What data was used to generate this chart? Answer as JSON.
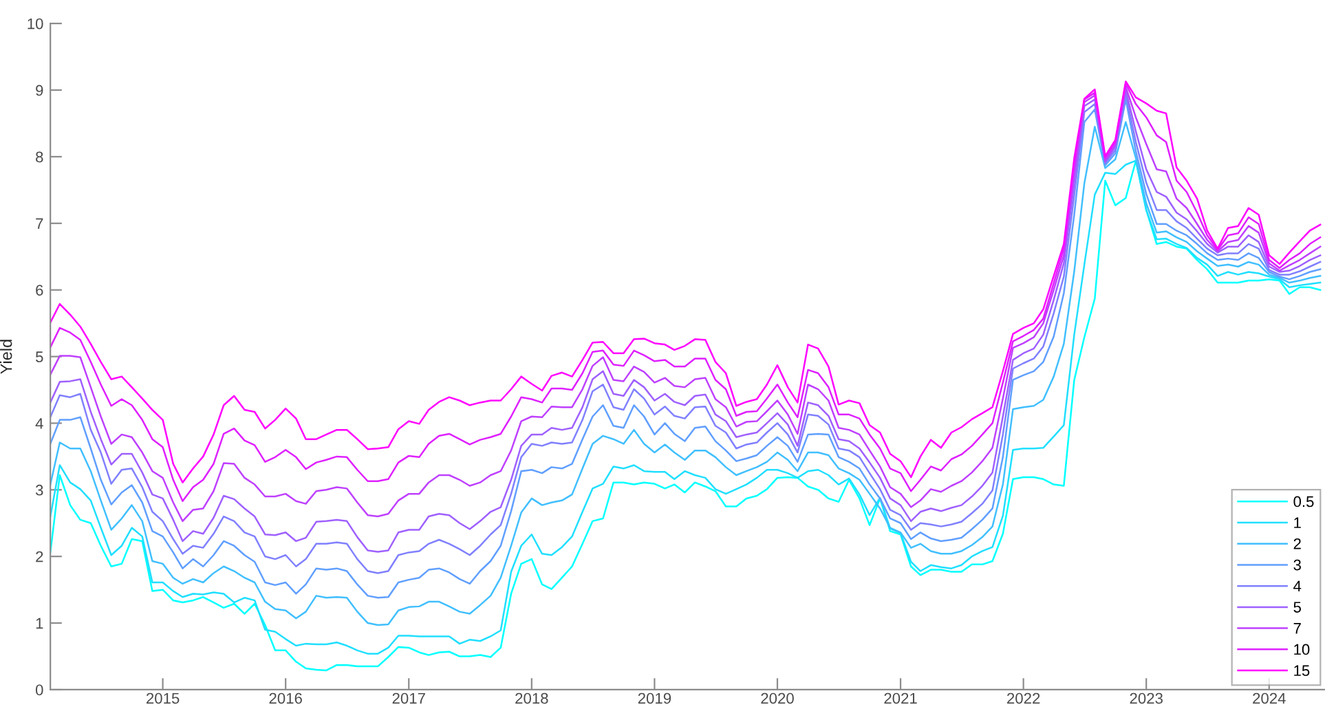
{
  "chart_data": {
    "type": "line",
    "ylabel": "Yield",
    "x": [
      "2014-02",
      "2014-03",
      "2014-04",
      "2014-05",
      "2014-06",
      "2014-07",
      "2014-08",
      "2014-09",
      "2014-10",
      "2014-11",
      "2014-12",
      "2015-01",
      "2015-02",
      "2015-03",
      "2015-04",
      "2015-05",
      "2015-06",
      "2015-07",
      "2015-08",
      "2015-09",
      "2015-10",
      "2015-11",
      "2015-12",
      "2016-01",
      "2016-02",
      "2016-03",
      "2016-04",
      "2016-05",
      "2016-06",
      "2016-07",
      "2016-08",
      "2016-09",
      "2016-10",
      "2016-11",
      "2016-12",
      "2017-01",
      "2017-02",
      "2017-03",
      "2017-04",
      "2017-05",
      "2017-06",
      "2017-07",
      "2017-08",
      "2017-09",
      "2017-10",
      "2017-11",
      "2017-12",
      "2018-01",
      "2018-02",
      "2018-03",
      "2018-04",
      "2018-05",
      "2018-06",
      "2018-07",
      "2018-08",
      "2018-09",
      "2018-10",
      "2018-11",
      "2018-12",
      "2019-01",
      "2019-02",
      "2019-03",
      "2019-04",
      "2019-05",
      "2019-06",
      "2019-07",
      "2019-08",
      "2019-09",
      "2019-10",
      "2019-11",
      "2019-12",
      "2020-01",
      "2020-02",
      "2020-03",
      "2020-04",
      "2020-05",
      "2020-06",
      "2020-07",
      "2020-08",
      "2020-09",
      "2020-10",
      "2020-11",
      "2020-12",
      "2021-01",
      "2021-02",
      "2021-03",
      "2021-04",
      "2021-05",
      "2021-06",
      "2021-07",
      "2021-08",
      "2021-09",
      "2021-10",
      "2021-11",
      "2021-12",
      "2022-01",
      "2022-02",
      "2022-03",
      "2022-04",
      "2022-05",
      "2022-06",
      "2022-07",
      "2022-08",
      "2022-09",
      "2022-10",
      "2022-11",
      "2022-12",
      "2023-01",
      "2023-02",
      "2023-03",
      "2023-04",
      "2023-05",
      "2023-06",
      "2023-07",
      "2023-08",
      "2023-09",
      "2023-10",
      "2023-11",
      "2023-12",
      "2024-01",
      "2024-02",
      "2024-03",
      "2024-04",
      "2024-05",
      "2024-06"
    ],
    "series": [
      {
        "name": "0.5",
        "color": "#00ffff",
        "values": [
          2.06,
          3.22,
          2.77,
          2.55,
          2.5,
          2.16,
          1.85,
          1.89,
          2.26,
          2.23,
          1.48,
          1.5,
          1.34,
          1.31,
          1.34,
          1.39,
          1.31,
          1.23,
          1.29,
          1.14,
          1.29,
          0.97,
          0.59,
          0.59,
          0.42,
          0.32,
          0.3,
          0.29,
          0.37,
          0.37,
          0.35,
          0.35,
          0.35,
          0.49,
          0.64,
          0.63,
          0.56,
          0.52,
          0.56,
          0.57,
          0.5,
          0.5,
          0.52,
          0.49,
          0.63,
          1.44,
          1.89,
          1.96,
          1.58,
          1.51,
          1.68,
          1.85,
          2.19,
          2.53,
          2.57,
          3.11,
          3.11,
          3.08,
          3.11,
          3.09,
          3.02,
          3.08,
          2.96,
          3.11,
          3.05,
          2.98,
          2.75,
          2.75,
          2.87,
          2.91,
          3.01,
          3.18,
          3.19,
          3.18,
          3.05,
          3.0,
          2.87,
          2.82,
          3.15,
          2.87,
          2.47,
          2.87,
          2.38,
          2.33,
          1.85,
          1.72,
          1.8,
          1.8,
          1.77,
          1.77,
          1.88,
          1.88,
          1.93,
          2.34,
          3.16,
          3.19,
          3.19,
          3.16,
          3.08,
          3.06,
          4.65,
          5.29,
          5.87,
          7.64,
          7.27,
          7.38,
          7.94,
          7.2,
          6.69,
          6.72,
          6.65,
          6.62,
          6.45,
          6.31,
          6.11,
          6.11,
          6.11,
          6.14,
          6.14,
          6.16,
          6.14,
          5.94,
          6.04,
          6.04,
          6.0
        ]
      },
      {
        "name": "1",
        "color": "#20dfff",
        "values": [
          2.6,
          3.37,
          3.11,
          3.01,
          2.84,
          2.43,
          2.02,
          2.16,
          2.43,
          2.3,
          1.61,
          1.61,
          1.48,
          1.39,
          1.44,
          1.43,
          1.46,
          1.44,
          1.31,
          1.38,
          1.34,
          0.9,
          0.87,
          0.76,
          0.66,
          0.69,
          0.68,
          0.68,
          0.71,
          0.66,
          0.59,
          0.54,
          0.54,
          0.63,
          0.81,
          0.81,
          0.8,
          0.8,
          0.8,
          0.8,
          0.69,
          0.75,
          0.73,
          0.8,
          0.89,
          1.77,
          2.16,
          2.33,
          2.04,
          2.02,
          2.14,
          2.3,
          2.67,
          3.02,
          3.09,
          3.35,
          3.32,
          3.37,
          3.28,
          3.27,
          3.27,
          3.16,
          3.28,
          3.22,
          3.18,
          3.01,
          2.94,
          3.01,
          3.08,
          3.18,
          3.3,
          3.3,
          3.25,
          3.18,
          3.28,
          3.3,
          3.22,
          3.08,
          3.17,
          2.93,
          2.62,
          2.88,
          2.42,
          2.35,
          1.92,
          1.78,
          1.87,
          1.84,
          1.82,
          1.87,
          2.0,
          2.08,
          2.14,
          2.61,
          3.6,
          3.62,
          3.62,
          3.63,
          3.8,
          3.97,
          5.33,
          6.38,
          7.43,
          7.76,
          7.74,
          7.88,
          7.94,
          7.2,
          6.76,
          6.77,
          6.69,
          6.63,
          6.48,
          6.38,
          6.21,
          6.27,
          6.23,
          6.27,
          6.25,
          6.2,
          6.16,
          6.04,
          6.07,
          6.09,
          6.11
        ]
      },
      {
        "name": "2",
        "color": "#40bfff",
        "values": [
          3.08,
          3.71,
          3.62,
          3.62,
          3.28,
          2.84,
          2.4,
          2.57,
          2.77,
          2.53,
          1.93,
          1.89,
          1.68,
          1.59,
          1.66,
          1.61,
          1.75,
          1.85,
          1.78,
          1.68,
          1.61,
          1.32,
          1.21,
          1.19,
          1.07,
          1.17,
          1.41,
          1.38,
          1.39,
          1.38,
          1.17,
          1.0,
          0.97,
          0.98,
          1.19,
          1.24,
          1.25,
          1.32,
          1.32,
          1.25,
          1.17,
          1.14,
          1.27,
          1.41,
          1.68,
          2.16,
          2.66,
          2.87,
          2.77,
          2.81,
          2.84,
          2.93,
          3.32,
          3.69,
          3.81,
          3.76,
          3.69,
          3.9,
          3.69,
          3.56,
          3.68,
          3.56,
          3.45,
          3.59,
          3.59,
          3.49,
          3.34,
          3.22,
          3.28,
          3.34,
          3.42,
          3.56,
          3.45,
          3.28,
          3.56,
          3.56,
          3.52,
          3.32,
          3.25,
          3.15,
          2.94,
          2.72,
          2.43,
          2.36,
          2.13,
          2.19,
          2.08,
          2.04,
          2.04,
          2.08,
          2.17,
          2.29,
          2.45,
          3.08,
          4.21,
          4.24,
          4.26,
          4.35,
          4.7,
          5.19,
          6.28,
          7.6,
          8.45,
          7.83,
          7.96,
          8.52,
          7.98,
          7.3,
          6.86,
          6.88,
          6.79,
          6.72,
          6.58,
          6.47,
          6.36,
          6.38,
          6.35,
          6.42,
          6.38,
          6.23,
          6.18,
          6.11,
          6.14,
          6.18,
          6.21
        ]
      },
      {
        "name": "3",
        "color": "#609fff",
        "values": [
          3.69,
          4.05,
          4.05,
          4.09,
          3.62,
          3.15,
          2.78,
          2.96,
          3.07,
          2.81,
          2.38,
          2.3,
          2.06,
          1.82,
          1.96,
          1.85,
          2.02,
          2.23,
          2.16,
          2.02,
          1.92,
          1.61,
          1.57,
          1.61,
          1.44,
          1.58,
          1.82,
          1.8,
          1.82,
          1.78,
          1.58,
          1.41,
          1.38,
          1.39,
          1.61,
          1.65,
          1.68,
          1.8,
          1.82,
          1.76,
          1.66,
          1.59,
          1.78,
          1.93,
          2.16,
          2.68,
          3.28,
          3.3,
          3.25,
          3.34,
          3.32,
          3.39,
          3.76,
          4.1,
          4.27,
          3.96,
          3.93,
          4.27,
          4.1,
          3.83,
          4.0,
          3.84,
          3.73,
          3.93,
          3.95,
          3.73,
          3.59,
          3.43,
          3.47,
          3.52,
          3.66,
          3.79,
          3.66,
          3.42,
          3.83,
          3.84,
          3.83,
          3.49,
          3.42,
          3.32,
          3.08,
          2.87,
          2.57,
          2.5,
          2.26,
          2.36,
          2.27,
          2.23,
          2.25,
          2.28,
          2.41,
          2.55,
          2.72,
          3.49,
          4.65,
          4.72,
          4.78,
          4.92,
          5.3,
          5.95,
          7.13,
          8.52,
          8.71,
          7.87,
          8.05,
          8.86,
          8.08,
          7.44,
          6.99,
          6.99,
          6.89,
          6.82,
          6.69,
          6.55,
          6.45,
          6.47,
          6.45,
          6.55,
          6.48,
          6.27,
          6.2,
          6.16,
          6.21,
          6.27,
          6.31
        ]
      },
      {
        "name": "4",
        "color": "#8080ff",
        "values": [
          4.09,
          4.42,
          4.39,
          4.44,
          3.9,
          3.56,
          3.09,
          3.3,
          3.32,
          3.04,
          2.67,
          2.53,
          2.26,
          2.04,
          2.16,
          2.13,
          2.34,
          2.6,
          2.53,
          2.36,
          2.3,
          2.0,
          1.96,
          2.02,
          1.85,
          1.96,
          2.19,
          2.19,
          2.21,
          2.19,
          1.96,
          1.78,
          1.75,
          1.78,
          2.02,
          2.06,
          2.08,
          2.19,
          2.25,
          2.19,
          2.11,
          2.02,
          2.16,
          2.33,
          2.47,
          2.94,
          3.49,
          3.69,
          3.66,
          3.71,
          3.69,
          3.71,
          4.05,
          4.48,
          4.58,
          4.24,
          4.2,
          4.51,
          4.37,
          4.13,
          4.25,
          4.11,
          4.07,
          4.24,
          4.25,
          3.96,
          3.86,
          3.62,
          3.68,
          3.71,
          3.86,
          4.0,
          3.83,
          3.56,
          4.13,
          4.11,
          3.98,
          3.62,
          3.59,
          3.49,
          3.25,
          3.01,
          2.7,
          2.62,
          2.4,
          2.5,
          2.48,
          2.45,
          2.48,
          2.52,
          2.65,
          2.79,
          2.99,
          3.83,
          4.82,
          4.9,
          4.97,
          5.15,
          5.65,
          6.2,
          7.42,
          8.67,
          8.79,
          7.9,
          8.1,
          8.94,
          8.22,
          7.61,
          7.2,
          7.2,
          7.03,
          6.93,
          6.77,
          6.62,
          6.52,
          6.55,
          6.55,
          6.69,
          6.62,
          6.3,
          6.23,
          6.23,
          6.28,
          6.35,
          6.42
        ]
      },
      {
        "name": "5",
        "color": "#9f60ff",
        "values": [
          4.31,
          4.62,
          4.63,
          4.66,
          4.17,
          3.76,
          3.38,
          3.54,
          3.54,
          3.26,
          2.93,
          2.87,
          2.55,
          2.23,
          2.38,
          2.34,
          2.58,
          2.91,
          2.86,
          2.72,
          2.6,
          2.33,
          2.32,
          2.36,
          2.23,
          2.28,
          2.52,
          2.53,
          2.55,
          2.53,
          2.29,
          2.09,
          2.07,
          2.09,
          2.36,
          2.4,
          2.4,
          2.6,
          2.64,
          2.62,
          2.5,
          2.41,
          2.53,
          2.67,
          2.74,
          3.15,
          3.66,
          3.83,
          3.83,
          3.93,
          3.9,
          3.93,
          4.24,
          4.66,
          4.78,
          4.44,
          4.41,
          4.65,
          4.54,
          4.34,
          4.44,
          4.32,
          4.27,
          4.41,
          4.43,
          4.13,
          4.03,
          3.79,
          3.83,
          3.86,
          4.0,
          4.15,
          3.98,
          3.66,
          4.31,
          4.27,
          4.11,
          3.76,
          3.73,
          3.62,
          3.41,
          3.18,
          2.87,
          2.77,
          2.53,
          2.67,
          2.72,
          2.68,
          2.73,
          2.77,
          2.9,
          3.06,
          3.26,
          4.1,
          4.95,
          5.05,
          5.12,
          5.33,
          5.85,
          6.4,
          7.6,
          8.76,
          8.86,
          7.92,
          8.15,
          9.0,
          8.38,
          7.81,
          7.47,
          7.4,
          7.16,
          7.06,
          6.88,
          6.69,
          6.56,
          6.65,
          6.65,
          6.82,
          6.72,
          6.35,
          6.27,
          6.29,
          6.36,
          6.45,
          6.52
        ]
      },
      {
        "name": "7",
        "color": "#bf40ff",
        "values": [
          4.73,
          5.01,
          5.01,
          4.99,
          4.54,
          4.1,
          3.69,
          3.83,
          3.79,
          3.56,
          3.28,
          3.18,
          2.81,
          2.53,
          2.7,
          2.72,
          2.98,
          3.4,
          3.39,
          3.18,
          3.08,
          2.9,
          2.9,
          2.94,
          2.83,
          2.79,
          2.98,
          3.0,
          3.04,
          3.02,
          2.81,
          2.62,
          2.6,
          2.64,
          2.84,
          2.94,
          2.94,
          3.11,
          3.22,
          3.22,
          3.15,
          3.06,
          3.11,
          3.22,
          3.28,
          3.59,
          4.03,
          4.1,
          4.09,
          4.25,
          4.24,
          4.24,
          4.51,
          4.86,
          4.99,
          4.65,
          4.63,
          4.85,
          4.77,
          4.61,
          4.68,
          4.56,
          4.54,
          4.66,
          4.68,
          4.36,
          4.24,
          3.95,
          4.02,
          4.03,
          4.18,
          4.34,
          4.13,
          3.84,
          4.58,
          4.51,
          4.34,
          3.93,
          3.9,
          3.83,
          3.59,
          3.35,
          3.04,
          2.94,
          2.74,
          2.84,
          3.01,
          2.97,
          3.06,
          3.13,
          3.26,
          3.43,
          3.63,
          4.37,
          5.13,
          5.2,
          5.29,
          5.5,
          6.0,
          6.52,
          7.76,
          8.82,
          8.92,
          7.94,
          8.18,
          9.05,
          8.59,
          8.19,
          7.81,
          7.78,
          7.37,
          7.23,
          6.99,
          6.75,
          6.58,
          6.72,
          6.75,
          6.96,
          6.86,
          6.4,
          6.29,
          6.37,
          6.45,
          6.55,
          6.65
        ]
      },
      {
        "name": "10",
        "color": "#df20ff",
        "values": [
          5.14,
          5.43,
          5.36,
          5.25,
          4.92,
          4.58,
          4.26,
          4.36,
          4.27,
          4.05,
          3.76,
          3.64,
          3.15,
          2.83,
          3.04,
          3.15,
          3.39,
          3.84,
          3.92,
          3.74,
          3.67,
          3.42,
          3.49,
          3.6,
          3.49,
          3.31,
          3.41,
          3.45,
          3.5,
          3.49,
          3.3,
          3.13,
          3.13,
          3.16,
          3.41,
          3.51,
          3.49,
          3.69,
          3.81,
          3.84,
          3.76,
          3.68,
          3.75,
          3.79,
          3.84,
          4.1,
          4.39,
          4.36,
          4.31,
          4.52,
          4.52,
          4.5,
          4.75,
          5.07,
          5.09,
          4.88,
          4.86,
          5.09,
          5.02,
          4.93,
          4.95,
          4.85,
          4.85,
          4.97,
          4.97,
          4.65,
          4.51,
          4.11,
          4.17,
          4.18,
          4.37,
          4.58,
          4.31,
          4.09,
          4.8,
          4.75,
          4.54,
          4.13,
          4.13,
          4.07,
          3.83,
          3.62,
          3.32,
          3.25,
          2.98,
          3.15,
          3.35,
          3.29,
          3.46,
          3.53,
          3.66,
          3.83,
          4.0,
          4.61,
          5.23,
          5.31,
          5.4,
          5.57,
          6.1,
          6.62,
          7.88,
          8.86,
          8.96,
          7.98,
          8.22,
          9.1,
          8.79,
          8.59,
          8.32,
          8.22,
          7.64,
          7.47,
          7.16,
          6.82,
          6.6,
          6.82,
          6.85,
          7.09,
          6.99,
          6.45,
          6.33,
          6.45,
          6.55,
          6.69,
          6.79
        ]
      },
      {
        "name": "15",
        "color": "#ff00ff",
        "values": [
          5.51,
          5.79,
          5.63,
          5.45,
          5.19,
          4.92,
          4.66,
          4.7,
          4.54,
          4.37,
          4.2,
          4.05,
          3.39,
          3.11,
          3.32,
          3.5,
          3.83,
          4.27,
          4.41,
          4.2,
          4.17,
          3.92,
          4.05,
          4.22,
          4.07,
          3.76,
          3.76,
          3.83,
          3.9,
          3.9,
          3.76,
          3.61,
          3.62,
          3.64,
          3.91,
          4.03,
          3.99,
          4.2,
          4.32,
          4.39,
          4.34,
          4.27,
          4.31,
          4.34,
          4.34,
          4.51,
          4.7,
          4.59,
          4.49,
          4.71,
          4.76,
          4.7,
          4.95,
          5.21,
          5.22,
          5.05,
          5.05,
          5.26,
          5.27,
          5.2,
          5.18,
          5.1,
          5.16,
          5.26,
          5.25,
          4.92,
          4.75,
          4.26,
          4.32,
          4.36,
          4.58,
          4.87,
          4.54,
          4.31,
          5.18,
          5.12,
          4.85,
          4.28,
          4.34,
          4.3,
          3.97,
          3.86,
          3.54,
          3.43,
          3.19,
          3.5,
          3.75,
          3.63,
          3.86,
          3.94,
          4.06,
          4.15,
          4.24,
          4.78,
          5.34,
          5.43,
          5.5,
          5.71,
          6.21,
          6.69,
          7.98,
          8.87,
          9.01,
          8.01,
          8.25,
          9.13,
          8.89,
          8.8,
          8.69,
          8.65,
          7.84,
          7.64,
          7.37,
          6.89,
          6.62,
          6.93,
          6.96,
          7.23,
          7.13,
          6.52,
          6.39,
          6.56,
          6.73,
          6.89,
          6.98
        ]
      }
    ],
    "xlim": [
      "2014-02-01",
      "2024-06-15"
    ],
    "xticks": [
      "2015",
      "2016",
      "2017",
      "2018",
      "2019",
      "2020",
      "2021",
      "2022",
      "2023",
      "2024"
    ],
    "ylim": [
      0,
      10
    ],
    "yticks": [
      0,
      1,
      2,
      3,
      4,
      5,
      6,
      7,
      8,
      9,
      10
    ],
    "legend": "bottom right"
  }
}
